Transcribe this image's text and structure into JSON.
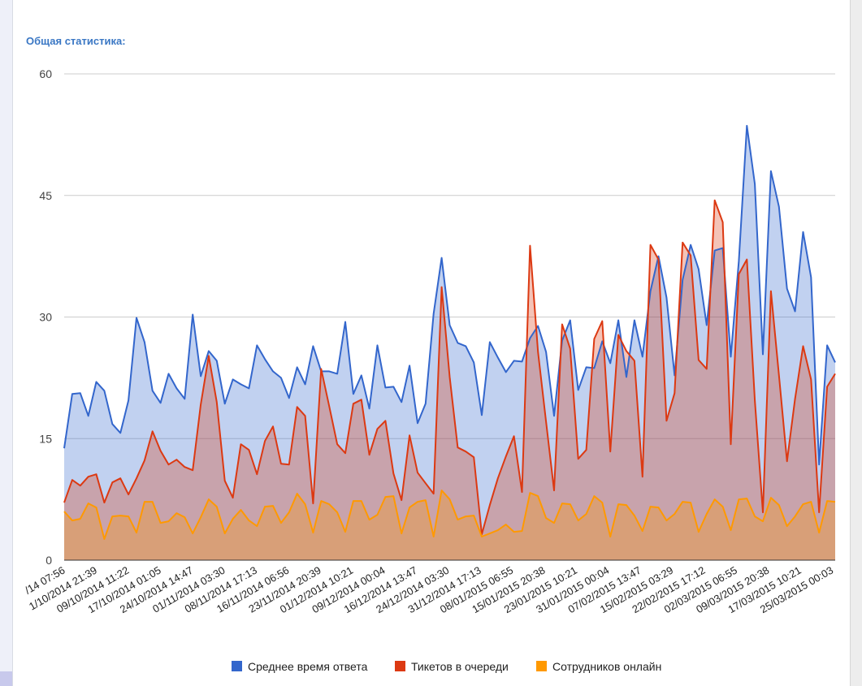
{
  "panel": {
    "title": "Общая статистика:"
  },
  "chart_data": {
    "type": "area",
    "title": "Общая статистика:",
    "xlabel": "",
    "ylabel": "",
    "ylim": [
      0,
      60
    ],
    "yticks": [
      0,
      15,
      30,
      45,
      60
    ],
    "grid": true,
    "legend_position": "bottom",
    "x_tick_labels": [
      "/14 07:56",
      "1/10/2014 21:39",
      "09/10/2014 11:22",
      "17/10/2014 01:05",
      "24/10/2014 14:47",
      "01/11/2014 03:30",
      "08/11/2014 17:13",
      "16/11/2014 06:56",
      "23/11/2014 20:39",
      "01/12/2014 10:21",
      "09/12/2014 00:04",
      "16/12/2014 13:47",
      "24/12/2014 03:30",
      "31/12/2014 17:13",
      "08/01/2015 06:55",
      "15/01/2015 20:38",
      "23/01/2015 10:21",
      "31/01/2015 00:04",
      "07/02/2015 13:47",
      "15/02/2015 03:29",
      "22/02/2015 17:12",
      "02/03/2015 06:55",
      "09/03/2015 20:38",
      "17/03/2015 10:21",
      "25/03/2015 00:03"
    ],
    "series": [
      {
        "name": "Среднее время ответа",
        "color": "#3366cc",
        "values": [
          13.8,
          20.5,
          20.6,
          17.8,
          22,
          20.9,
          16.8,
          15.7,
          19.7,
          29.9,
          26.9,
          20.9,
          19.4,
          23,
          21.2,
          19.9,
          30.3,
          22.7,
          25.8,
          24.6,
          19.3,
          22.3,
          21.7,
          21.2,
          26.5,
          24.8,
          23.3,
          22.5,
          20,
          23.8,
          21.7,
          26.4,
          23.3,
          23.3,
          23,
          29.4,
          20.5,
          22.8,
          18.7,
          26.5,
          21.3,
          21.4,
          19.5,
          24,
          16.9,
          19.3,
          30.4,
          37.3,
          29,
          26.8,
          26.4,
          24.4,
          17.9,
          26.9,
          25,
          23.2,
          24.6,
          24.5,
          27.4,
          28.9,
          25.7,
          17.8,
          27.1,
          29.6,
          21,
          23.8,
          23.7,
          27,
          24.3,
          29.6,
          22.6,
          29.6,
          25.1,
          33.2,
          37.5,
          32.4,
          22.8,
          34.6,
          38.9,
          35.9,
          29,
          38.2,
          38.5,
          25.1,
          36.9,
          53.6,
          46.4,
          25.4,
          48,
          43.6,
          33.5,
          30.7,
          40.5,
          34.9,
          11.8,
          26.5,
          24.4
        ]
      },
      {
        "name": "Тикетов в очереди",
        "color": "#dc3912",
        "values": [
          7.1,
          9.9,
          9.2,
          10.3,
          10.6,
          7.1,
          9.6,
          10.1,
          8.1,
          10.1,
          12.3,
          15.9,
          13.5,
          11.8,
          12.4,
          11.5,
          11.1,
          19.2,
          25.2,
          19.5,
          9.8,
          7.7,
          14.3,
          13.6,
          10.6,
          14.7,
          16.5,
          11.9,
          11.8,
          18.9,
          17.8,
          7,
          23.6,
          19,
          14.3,
          13.2,
          19.3,
          19.8,
          13,
          16.2,
          17.2,
          10.7,
          7.4,
          15.4,
          10.8,
          9.5,
          8.2,
          33.7,
          22.6,
          13.9,
          13.4,
          12.7,
          3.2,
          6.8,
          10.1,
          12.8,
          15.3,
          8.4,
          38.8,
          25.7,
          17.1,
          8.6,
          29.1,
          26.1,
          12.5,
          13.6,
          27.3,
          29.5,
          13.4,
          27.8,
          25.8,
          24.6,
          10.3,
          38.9,
          37.1,
          17.2,
          20.6,
          39.2,
          37.6,
          24.7,
          23.6,
          44.4,
          41.7,
          14.3,
          35.3,
          37.1,
          19.7,
          5.9,
          33.2,
          22.8,
          12.2,
          19.9,
          26.4,
          22.3,
          5.9,
          21.4,
          23
        ]
      },
      {
        "name": "Сотрудников онлайн",
        "color": "#ff9900",
        "values": [
          6,
          4.9,
          5.1,
          7,
          6.5,
          2.6,
          5.4,
          5.5,
          5.4,
          3.4,
          7.2,
          7.2,
          4.6,
          4.8,
          5.8,
          5.3,
          3.3,
          5.3,
          7.5,
          6.6,
          3.3,
          5.1,
          6.2,
          4.9,
          4.2,
          6.6,
          6.7,
          4.6,
          5.9,
          8.2,
          6.9,
          3.4,
          7.3,
          6.9,
          5.9,
          3.5,
          7.3,
          7.3,
          5,
          5.6,
          7.8,
          7.9,
          3.3,
          6.5,
          7.2,
          7.4,
          2.9,
          8.6,
          7.5,
          5,
          5.4,
          5.5,
          2.9,
          3.3,
          3.7,
          4.4,
          3.5,
          3.6,
          8.3,
          7.9,
          5.2,
          4.6,
          7,
          6.9,
          4.9,
          5.7,
          7.9,
          7.1,
          2.9,
          6.9,
          6.8,
          5.5,
          3.6,
          6.6,
          6.5,
          4.9,
          5.7,
          7.2,
          7.1,
          3.5,
          5.7,
          7.5,
          6.6,
          3.7,
          7.5,
          7.6,
          5.4,
          4.8,
          7.7,
          6.8,
          4.2,
          5.4,
          6.9,
          7.2,
          3.4,
          7.3,
          7.2
        ]
      }
    ]
  }
}
